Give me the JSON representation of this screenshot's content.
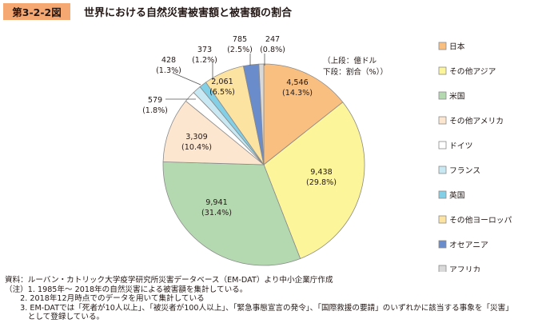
{
  "figure": {
    "number": "第3-2-2図",
    "title": "世界における自然災害被害額と被害額の割合"
  },
  "unit_note": [
    "（上段：億ドル",
    "下段：割合（%））"
  ],
  "chart_data": {
    "type": "pie",
    "title": "世界における自然災害被害額と被害額の割合",
    "unit": "上段：億ドル　下段：割合（%）",
    "legend_position": "right",
    "slices": [
      {
        "label": "日本",
        "value": 4546,
        "value_text": "4,546",
        "percent": 14.3,
        "percent_text": "(14.3%)",
        "color": "#f9bf81"
      },
      {
        "label": "その他アジア",
        "value": 9438,
        "value_text": "9,438",
        "percent": 29.8,
        "percent_text": "(29.8%)",
        "color": "#fdf59a"
      },
      {
        "label": "米国",
        "value": 9941,
        "value_text": "9,941",
        "percent": 31.4,
        "percent_text": "(31.4%)",
        "color": "#b4d9b0"
      },
      {
        "label": "その他アメリカ",
        "value": 3309,
        "value_text": "3,309",
        "percent": 10.4,
        "percent_text": "(10.4%)",
        "color": "#fde6d0"
      },
      {
        "label": "ドイツ",
        "value": 579,
        "value_text": "579",
        "percent": 1.8,
        "percent_text": "(1.8%)",
        "color": "#ffffff"
      },
      {
        "label": "フランス",
        "value": 428,
        "value_text": "428",
        "percent": 1.3,
        "percent_text": "(1.3%)",
        "color": "#c8e9f3"
      },
      {
        "label": "英国",
        "value": 373,
        "value_text": "373",
        "percent": 1.2,
        "percent_text": "(1.2%)",
        "color": "#83cfe6"
      },
      {
        "label": "その他ヨーロッパ",
        "value": 2061,
        "value_text": "2,061",
        "percent": 6.5,
        "percent_text": "(6.5%)",
        "color": "#fde3a1"
      },
      {
        "label": "オセアニア",
        "value": 785,
        "value_text": "785",
        "percent": 2.5,
        "percent_text": "(2.5%)",
        "color": "#6b8ccb"
      },
      {
        "label": "アフリカ",
        "value": 247,
        "value_text": "247",
        "percent": 0.8,
        "percent_text": "(0.8%)",
        "color": "#d9d9d9"
      }
    ]
  },
  "notes": [
    "資料：ルーバン・カトリック大学疫学研究所災害データベース（EM-DAT）より中小企業庁作成",
    "（注）1. 1985年～ 2018年の自然災害による被害額を集計している。",
    "　　2. 2018年12月時点でのデータを用いて集計している",
    "　　3. EM-DATでは「死者が10人以上」、「被災者が100人以上」、「緊急事態宣言の発令」、「国際救援の要請」のいずれかに該当する事象を「災害」",
    "　　　として登録している。"
  ]
}
